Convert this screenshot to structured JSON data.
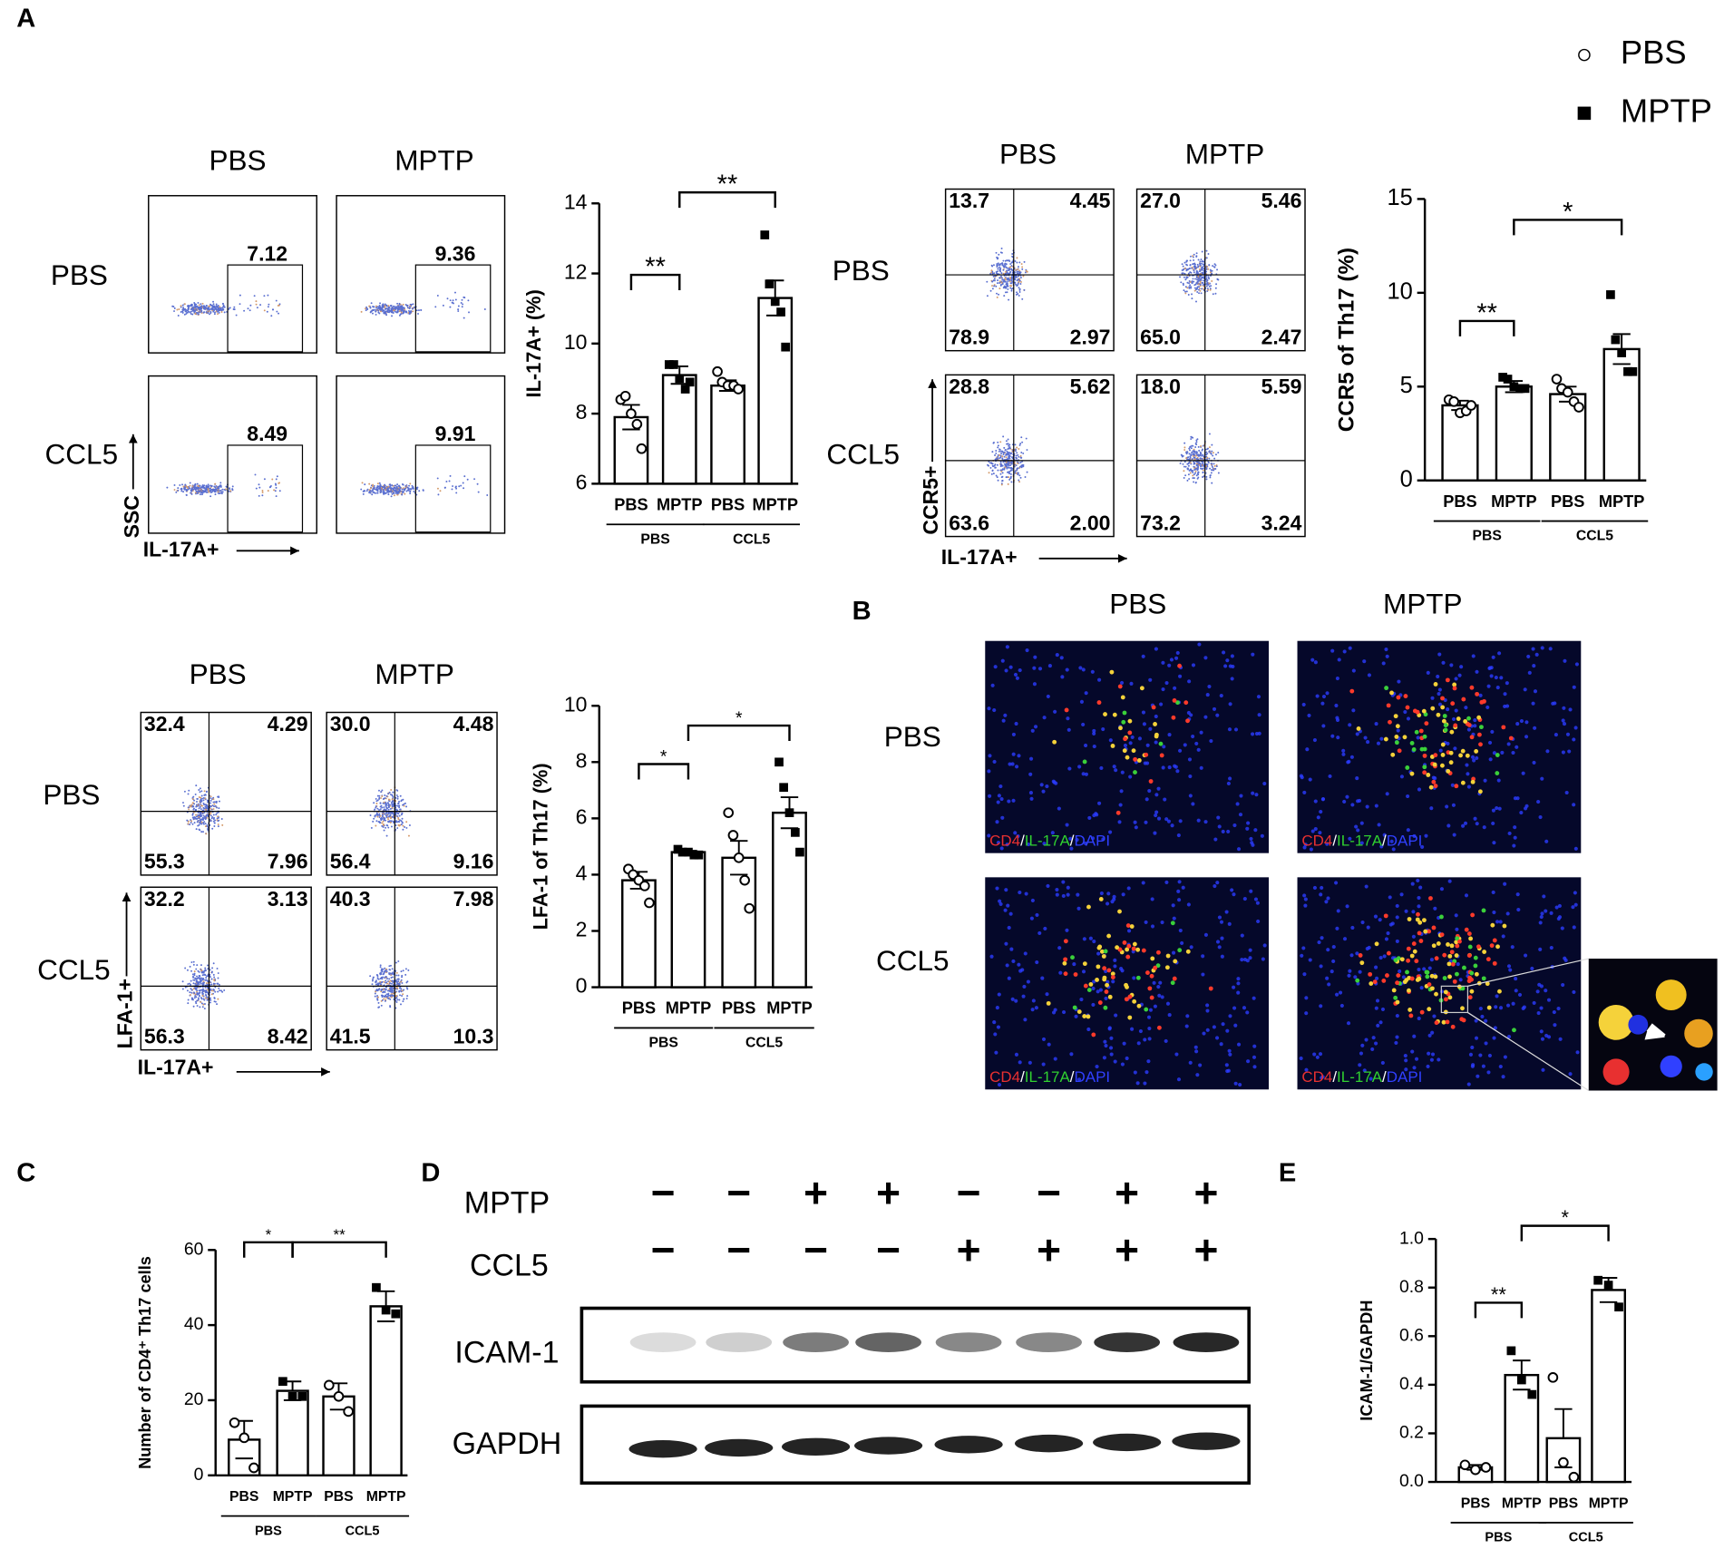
{
  "panel_labels": [
    "A",
    "B",
    "C",
    "D",
    "E"
  ],
  "legend": [
    {
      "label": "PBS",
      "marker": "circle"
    },
    {
      "label": "MPTP",
      "marker": "square"
    }
  ],
  "flow_gate": {
    "columns": [
      "PBS",
      "MPTP"
    ],
    "rows": [
      "PBS",
      "CCL5"
    ],
    "values": [
      "7.12",
      "9.36",
      "8.49",
      "9.91"
    ],
    "y_label": "SSC",
    "x_label": "IL-17A+"
  },
  "flow_ccr5": {
    "columns": [
      "PBS",
      "MPTP"
    ],
    "rows": [
      "PBS",
      "CCL5"
    ],
    "quadrants": [
      [
        "13.7",
        "4.45",
        "78.9",
        "2.97"
      ],
      [
        "27.0",
        "5.46",
        "65.0",
        "2.47"
      ],
      [
        "28.8",
        "5.62",
        "63.6",
        "2.00"
      ],
      [
        "18.0",
        "5.59",
        "73.2",
        "3.24"
      ]
    ],
    "y_label": "CCR5+",
    "x_label": "IL-17A+"
  },
  "flow_lfa1": {
    "columns": [
      "PBS",
      "MPTP"
    ],
    "rows": [
      "PBS",
      "CCL5"
    ],
    "quadrants": [
      [
        "32.4",
        "4.29",
        "55.3",
        "7.96"
      ],
      [
        "30.0",
        "4.48",
        "56.4",
        "9.16"
      ],
      [
        "32.2",
        "3.13",
        "56.3",
        "8.42"
      ],
      [
        "40.3",
        "7.98",
        "41.5",
        "10.3"
      ]
    ],
    "y_label": "LFA-1+",
    "x_label": "IL-17A+"
  },
  "micrographs": {
    "columns": [
      "PBS",
      "MPTP"
    ],
    "rows": [
      "PBS",
      "CCL5"
    ],
    "stain": [
      "CD4",
      "/",
      "IL-17A",
      "/",
      "DAPI"
    ]
  },
  "blot": {
    "rows": [
      "MPTP",
      "CCL5"
    ],
    "signs": [
      [
        "−",
        "−",
        "+",
        "+",
        "−",
        "−",
        "+",
        "+"
      ],
      [
        "−",
        "−",
        "−",
        "−",
        "+",
        "+",
        "+",
        "+"
      ]
    ],
    "bands": [
      "ICAM-1",
      "GAPDH"
    ]
  },
  "chart_data": [
    {
      "type": "bar",
      "y_label": "IL-17A+ (%)",
      "categories": [
        "PBS",
        "MPTP",
        "PBS",
        "MPTP"
      ],
      "groups": [
        "PBS",
        "CCL5"
      ],
      "color": "#000000",
      "markers": [
        "circle",
        "square",
        "circle",
        "square"
      ],
      "values": [
        7.9,
        9.1,
        8.8,
        11.3
      ],
      "errors": [
        0.35,
        0.25,
        0.15,
        0.5
      ],
      "points": [
        [
          8.4,
          8.5,
          8.0,
          7.7,
          7.0
        ],
        [
          9.4,
          9.4,
          9.0,
          8.7,
          8.9
        ],
        [
          9.2,
          8.9,
          8.8,
          8.8,
          8.7
        ],
        [
          13.1,
          11.7,
          11.2,
          10.9,
          9.9
        ]
      ],
      "significance": [
        "**",
        "**"
      ],
      "ylim": [
        6,
        14
      ],
      "yticks": [
        6,
        8,
        10,
        12,
        14
      ]
    },
    {
      "type": "bar",
      "y_label": "CCR5 of  Th17 (%)",
      "categories": [
        "PBS",
        "MPTP",
        "PBS",
        "MPTP"
      ],
      "groups": [
        "PBS",
        "CCL5"
      ],
      "color": "#000000",
      "markers": [
        "circle",
        "square",
        "circle",
        "square"
      ],
      "values": [
        4.0,
        5.0,
        4.6,
        7.0
      ],
      "errors": [
        0.25,
        0.3,
        0.4,
        0.8
      ],
      "points": [
        [
          4.3,
          4.2,
          3.6,
          3.7,
          4.0
        ],
        [
          5.5,
          5.4,
          5.0,
          4.9,
          4.9
        ],
        [
          5.4,
          4.9,
          4.7,
          4.2,
          3.9
        ],
        [
          9.9,
          7.5,
          6.8,
          5.8,
          5.8
        ]
      ],
      "significance": [
        "**",
        "*"
      ],
      "ylim": [
        0,
        15
      ],
      "yticks": [
        0,
        5,
        10,
        15
      ]
    },
    {
      "type": "bar",
      "y_label": "LFA-1 of Th17 (%)",
      "categories": [
        "PBS",
        "MPTP",
        "PBS",
        "MPTP"
      ],
      "groups": [
        "PBS",
        "CCL5"
      ],
      "color": "#000000",
      "markers": [
        "circle",
        "square",
        "circle",
        "square"
      ],
      "values": [
        3.8,
        4.8,
        4.6,
        6.2
      ],
      "errors": [
        0.3,
        0.05,
        0.6,
        0.55
      ],
      "points": [
        [
          4.2,
          4.0,
          3.8,
          3.6,
          3.0
        ],
        [
          4.9,
          4.8,
          4.8,
          4.7,
          4.7
        ],
        [
          6.2,
          5.4,
          4.6,
          3.8,
          2.8
        ],
        [
          8.0,
          7.1,
          6.2,
          5.5,
          4.8
        ]
      ],
      "significance": [
        "*",
        "*"
      ],
      "ylim": [
        0,
        10
      ],
      "yticks": [
        0,
        2,
        4,
        6,
        8,
        10
      ]
    },
    {
      "type": "bar",
      "y_label": "Number of CD4⁺ Th17 cells",
      "categories": [
        "PBS",
        "MPTP",
        "PBS",
        "MPTP"
      ],
      "groups": [
        "PBS",
        "CCL5"
      ],
      "color": "#000000",
      "markers": [
        "circle",
        "square",
        "circle",
        "square"
      ],
      "values": [
        9.5,
        22.5,
        21,
        45
      ],
      "errors": [
        5,
        2.5,
        3.5,
        4
      ],
      "points": [
        [
          14,
          10,
          2
        ],
        [
          25,
          21,
          21
        ],
        [
          24,
          21,
          17
        ],
        [
          50,
          44,
          43
        ]
      ],
      "significance": [
        "*",
        "**"
      ],
      "ylim": [
        0,
        60
      ],
      "yticks": [
        0,
        20,
        40,
        60
      ]
    },
    {
      "type": "bar",
      "y_label": "ICAM-1/GAPDH",
      "categories": [
        "PBS",
        "MPTP",
        "PBS",
        "MPTP"
      ],
      "groups": [
        "PBS",
        "CCL5"
      ],
      "color": "#000000",
      "markers": [
        "circle",
        "square",
        "circle",
        "square"
      ],
      "values": [
        0.06,
        0.44,
        0.18,
        0.79
      ],
      "errors": [
        0.01,
        0.06,
        0.12,
        0.05
      ],
      "points": [
        [
          0.07,
          0.05,
          0.06
        ],
        [
          0.54,
          0.42,
          0.36
        ],
        [
          0.43,
          0.08,
          0.02
        ],
        [
          0.83,
          0.81,
          0.72
        ]
      ],
      "significance": [
        "**",
        "*"
      ],
      "ylim": [
        0,
        1.0
      ],
      "yticks": [
        {
          "value": 0,
          "label": "0.0"
        },
        0.2,
        0.4,
        0.6,
        0.8,
        {
          "value": 1,
          "label": "1.0"
        }
      ]
    }
  ]
}
